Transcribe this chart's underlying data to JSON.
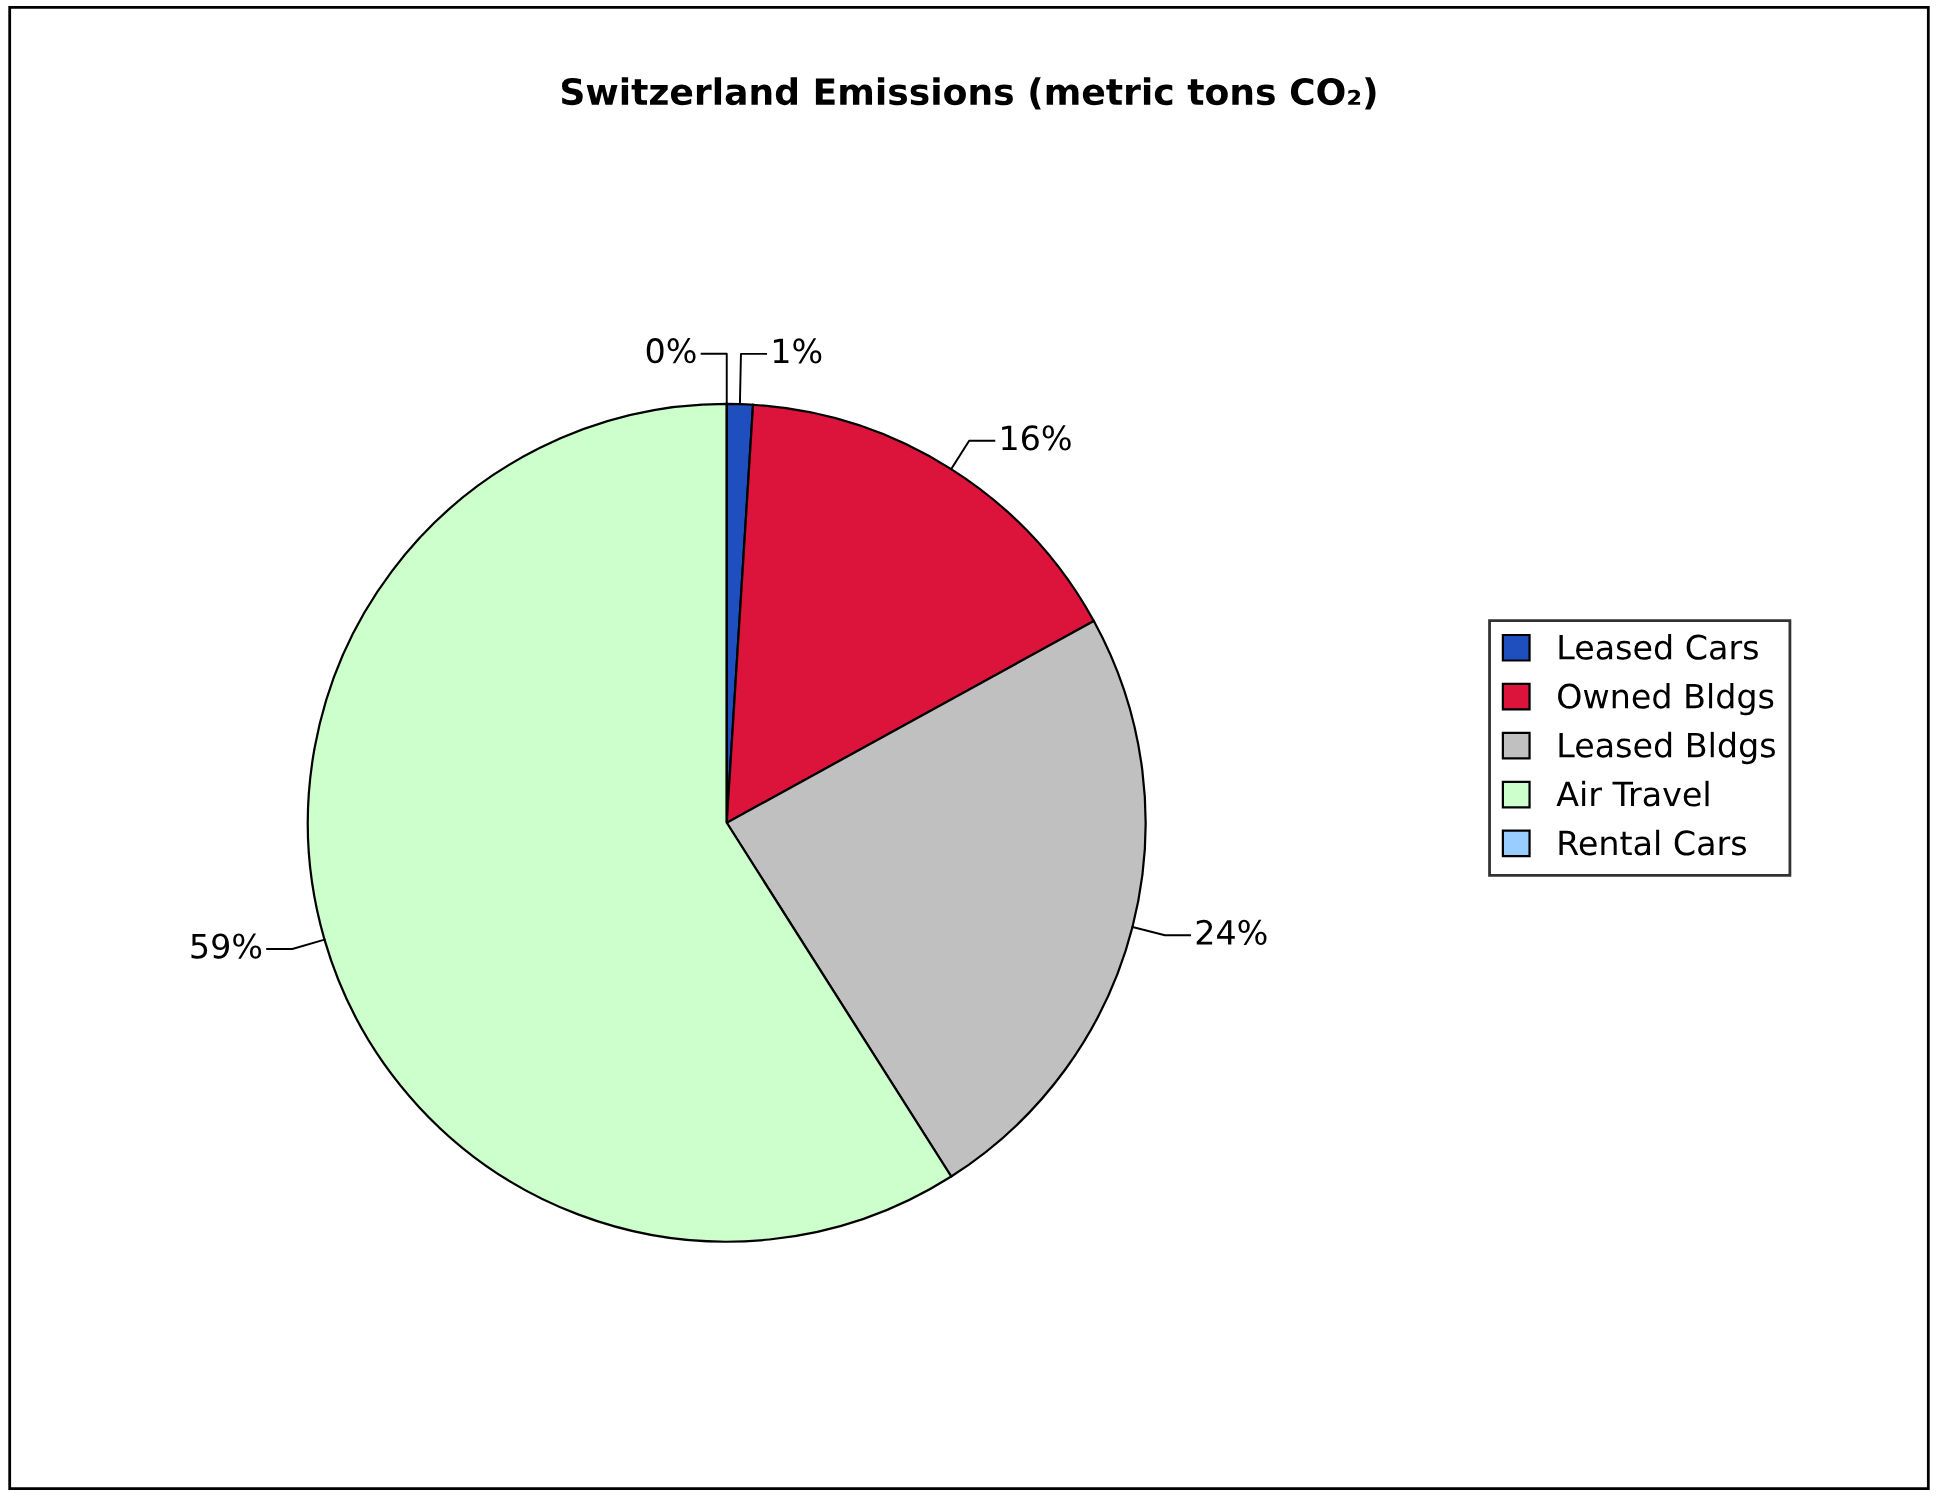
{
  "chart_data": {
    "type": "pie",
    "title": "Switzerland Emissions (metric tons CO₂)",
    "categories": [
      "Leased Cars",
      "Owned Bldgs",
      "Leased Bldgs",
      "Air Travel",
      "Rental Cars"
    ],
    "values": [
      1,
      16,
      24,
      59,
      0
    ],
    "colors": [
      "#1f4fbf",
      "#dc143c",
      "#c0c0c0",
      "#ccffcc",
      "#99ccff"
    ],
    "value_labels": [
      "1%",
      "16%",
      "24%",
      "59%",
      "0%"
    ],
    "legend": "right"
  }
}
